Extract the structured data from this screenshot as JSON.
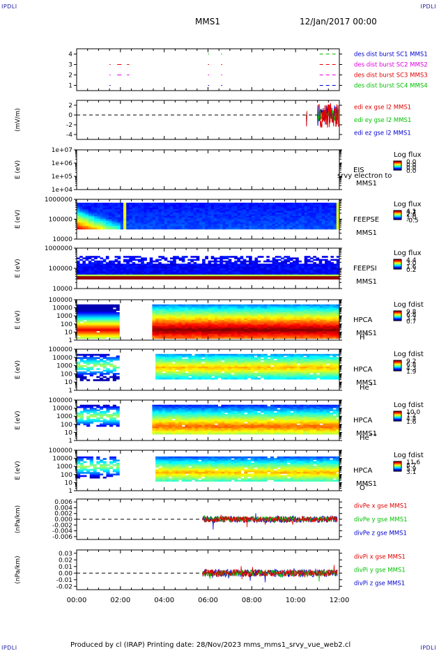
{
  "corners": {
    "tl": "IPDLI",
    "tr": "IPDLI",
    "bl": "IPDLI",
    "br": "IPDLI"
  },
  "header": {
    "spacecraft": "MMS1",
    "date": "12/Jan/2017 00:00"
  },
  "footer": {
    "text": "Produced by cl (IRAP)   Printing date: 28/Nov/2023   mms_mms1_srvy_vue_web2.cl"
  },
  "time_axis": {
    "ticks": [
      "00:00",
      "02:00",
      "04:00",
      "06:00",
      "08:00",
      "10:00",
      "12:00"
    ]
  },
  "colors": {
    "red": "#e00000",
    "green": "#00c000",
    "blue": "#0000d0",
    "magenta": "#e000e0"
  },
  "chart_data": [
    {
      "type": "scatter",
      "id": "burst",
      "ylim": [
        0.5,
        4.5
      ],
      "yticks": [
        "1",
        "2",
        "3",
        "4"
      ],
      "legend": [
        {
          "text": "des dist burst SC1 MMS1",
          "color": "#0000d0"
        },
        {
          "text": "des dist burst SC2 MMS2",
          "color": "#e000e0"
        },
        {
          "text": "des dist burst SC3 MMS3",
          "color": "#e00000"
        },
        {
          "text": "des dist burst SC4 MMS4",
          "color": "#00c000"
        }
      ]
    },
    {
      "type": "line",
      "id": "edi",
      "ylabel": "(mV/m)",
      "ylim": [
        -5,
        3
      ],
      "yticks": [
        "2",
        "0",
        "-2",
        "-4"
      ],
      "legend": [
        {
          "text": "edi ex gse l2 MMS1",
          "color": "#e00000"
        },
        {
          "text": "edi ey gse l2 MMS1",
          "color": "#00c000"
        },
        {
          "text": "edi ez gse l2 MMS1",
          "color": "#0000d0"
        }
      ]
    },
    {
      "type": "heatmap",
      "id": "eis",
      "ylabel": "E (eV)",
      "yticks": [
        "1e+07",
        "1e+06",
        "1e+05",
        "1e+04"
      ],
      "labels": [
        "EIS",
        "MMS1"
      ],
      "overlay": "srvy electron to",
      "cbar_title": "Log flux",
      "cbar_values": [
        "0.0",
        "0.0",
        "0.0",
        "0.0"
      ]
    },
    {
      "type": "heatmap",
      "id": "feepse",
      "ylabel": "E (eV)",
      "yticks": [
        "1000000",
        "100000",
        "10000"
      ],
      "labels": [
        "FEEPSE",
        "MMS1"
      ],
      "cbar_title": "Log flux",
      "cbar_values": [
        "4.1",
        "2.6",
        "1.0",
        "-0.5",
        "3.7"
      ]
    },
    {
      "type": "heatmap",
      "id": "feepsi",
      "ylabel": "E (eV)",
      "yticks": [
        "1000000",
        "100000",
        "10000"
      ],
      "labels": [
        "FEEPSI",
        "MMS1"
      ],
      "cbar_title": "Log flux",
      "cbar_values": [
        "4.4",
        "3.0",
        "1.6",
        "0.2"
      ]
    },
    {
      "type": "heatmap",
      "id": "hpca_h",
      "ylabel": "E (eV)",
      "yticks": [
        "100000",
        "10000",
        "1000",
        "100",
        "10",
        "1"
      ],
      "labels": [
        "HPCA",
        "MMS1"
      ],
      "species": "H",
      "species_sup": "+",
      "cbar_title": "Log fdist",
      "cbar_values": [
        "9.8",
        "6.8",
        "3.7",
        "0.7"
      ]
    },
    {
      "type": "heatmap",
      "id": "hpca_he",
      "ylabel": "E (eV)",
      "yticks": [
        "100000",
        "10000",
        "1000",
        "100",
        "10",
        "1"
      ],
      "labels": [
        "HPCA",
        "MMS1"
      ],
      "species": "He",
      "species_sup": "+",
      "cbar_title": "Log fdist",
      "cbar_values": [
        "9.2",
        "6.8",
        "4.3",
        "1.9"
      ]
    },
    {
      "type": "heatmap",
      "id": "hpca_hepp",
      "ylabel": "E (eV)",
      "yticks": [
        "100000",
        "10000",
        "1000",
        "100",
        "10",
        "1"
      ],
      "labels": [
        "HPCA",
        "MMS1"
      ],
      "species": "He",
      "species_sup": "++",
      "cbar_title": "Log fdist",
      "cbar_values": [
        "10.0",
        "7.2",
        "4.4",
        "1.6"
      ]
    },
    {
      "type": "heatmap",
      "id": "hpca_o",
      "ylabel": "E (eV)",
      "yticks": [
        "100000",
        "10000",
        "1000",
        "100",
        "10",
        "1"
      ],
      "labels": [
        "HPCA",
        "MMS1"
      ],
      "species": "O",
      "species_sup": "+",
      "cbar_title": "Log fdist",
      "cbar_values": [
        "11.6",
        "8.7",
        "5.9",
        "3.1"
      ]
    },
    {
      "type": "line",
      "id": "divpe",
      "ylabel": "(nPa/km)",
      "ylim": [
        -0.007,
        0.007
      ],
      "yticks": [
        "0.006",
        "0.004",
        "0.002",
        "0.000",
        "-0.002",
        "-0.004",
        "-0.006"
      ],
      "legend": [
        {
          "text": "divPe x gse MMS1",
          "color": "#e00000"
        },
        {
          "text": "divPe y gse MMS1",
          "color": "#00c000"
        },
        {
          "text": "divPe z gse MMS1",
          "color": "#0000d0"
        }
      ]
    },
    {
      "type": "line",
      "id": "divpi",
      "ylabel": "(nPa/km)",
      "ylim": [
        -0.025,
        0.035
      ],
      "yticks": [
        "0.03",
        "0.02",
        "0.01",
        "0.00",
        "-0.01",
        "-0.02"
      ],
      "legend": [
        {
          "text": "divPi x gse MMS1",
          "color": "#e00000"
        },
        {
          "text": "divPi y gse MMS1",
          "color": "#00c000"
        },
        {
          "text": "divPi z gse MMS1",
          "color": "#0000d0"
        }
      ]
    }
  ]
}
